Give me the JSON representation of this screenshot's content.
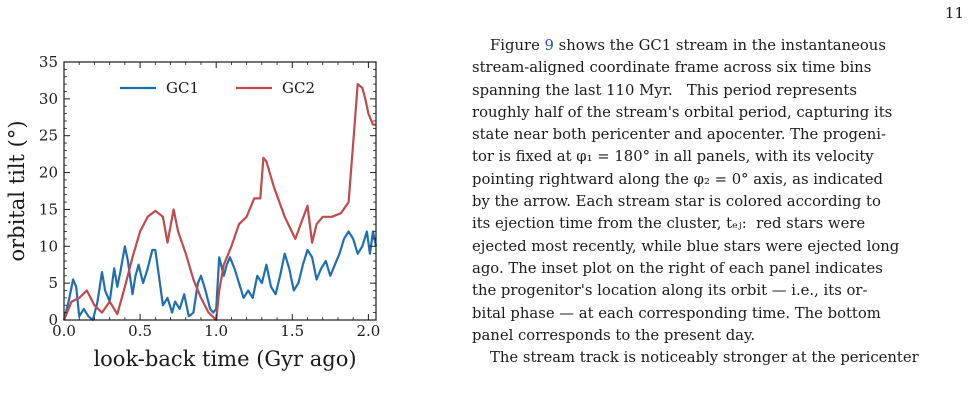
{
  "page_number": "11",
  "figure": {
    "colors": {
      "gc1": "#1f6fb0",
      "gc2": "#c04a4c"
    },
    "chart_data": {
      "type": "line",
      "xlabel": "look-back time (Gyr ago)",
      "ylabel": "orbital tilt (°)",
      "xlim": [
        0.0,
        2.05
      ],
      "ylim": [
        0,
        35
      ],
      "xticks": [
        "0.0",
        "0.5",
        "1.0",
        "1.5",
        "2.0"
      ],
      "yticks": [
        "0",
        "5",
        "10",
        "15",
        "20",
        "25",
        "30",
        "35"
      ],
      "legend_placement": "top",
      "series": [
        {
          "name": "GC1",
          "x": [
            0.0,
            0.03,
            0.06,
            0.08,
            0.1,
            0.13,
            0.16,
            0.19,
            0.22,
            0.25,
            0.27,
            0.3,
            0.33,
            0.35,
            0.37,
            0.4,
            0.42,
            0.45,
            0.47,
            0.49,
            0.52,
            0.55,
            0.58,
            0.6,
            0.62,
            0.65,
            0.68,
            0.71,
            0.73,
            0.76,
            0.79,
            0.82,
            0.85,
            0.88,
            0.9,
            0.93,
            0.96,
            0.98,
            1.0,
            1.02,
            1.05,
            1.07,
            1.09,
            1.12,
            1.15,
            1.18,
            1.21,
            1.24,
            1.27,
            1.3,
            1.33,
            1.36,
            1.39,
            1.42,
            1.45,
            1.48,
            1.51,
            1.54,
            1.57,
            1.6,
            1.63,
            1.66,
            1.69,
            1.72,
            1.75,
            1.78,
            1.81,
            1.84,
            1.87,
            1.9,
            1.93,
            1.96,
            1.99,
            2.01,
            2.03,
            2.05
          ],
          "y": [
            0.0,
            2.5,
            5.5,
            4.5,
            0.5,
            1.5,
            0.5,
            0.0,
            2.5,
            6.5,
            4.0,
            2.5,
            7.0,
            4.5,
            6.5,
            10.0,
            8.0,
            3.5,
            6.0,
            7.5,
            5.0,
            7.0,
            9.5,
            9.5,
            6.5,
            2.0,
            3.0,
            1.0,
            2.5,
            1.5,
            3.5,
            0.5,
            1.0,
            5.0,
            6.0,
            4.0,
            1.5,
            1.0,
            1.5,
            8.5,
            6.0,
            7.5,
            8.5,
            7.0,
            5.0,
            3.0,
            4.0,
            3.0,
            6.0,
            5.0,
            7.5,
            4.5,
            3.5,
            6.0,
            9.0,
            7.0,
            4.0,
            5.0,
            7.5,
            9.5,
            8.5,
            5.5,
            7.0,
            8.0,
            6.0,
            7.5,
            9.0,
            11.0,
            12.0,
            11.0,
            9.0,
            10.0,
            12.0,
            9.0,
            12.0,
            10.0
          ]
        },
        {
          "name": "GC2",
          "x": [
            0.0,
            0.05,
            0.1,
            0.15,
            0.2,
            0.25,
            0.3,
            0.35,
            0.4,
            0.45,
            0.5,
            0.55,
            0.6,
            0.65,
            0.68,
            0.72,
            0.75,
            0.8,
            0.85,
            0.9,
            0.95,
            1.0,
            1.02,
            1.05,
            1.1,
            1.15,
            1.2,
            1.25,
            1.29,
            1.31,
            1.33,
            1.38,
            1.45,
            1.52,
            1.6,
            1.63,
            1.66,
            1.7,
            1.76,
            1.82,
            1.87,
            1.9,
            1.93,
            1.96,
            1.98,
            2.0,
            2.03,
            2.05
          ],
          "y": [
            0.0,
            2.5,
            3.0,
            4.0,
            2.0,
            1.0,
            2.5,
            0.8,
            4.5,
            8.5,
            12.0,
            14.0,
            14.8,
            14.0,
            10.5,
            15.0,
            12.0,
            9.0,
            5.5,
            3.0,
            1.0,
            0.0,
            4.0,
            7.5,
            10.0,
            13.0,
            14.0,
            16.5,
            16.5,
            22.0,
            21.5,
            18.0,
            14.0,
            11.0,
            15.5,
            10.5,
            13.0,
            14.0,
            14.0,
            14.5,
            16.0,
            24.0,
            32.0,
            31.5,
            30.0,
            28.0,
            26.5,
            26.5
          ]
        }
      ]
    }
  },
  "paragraphs": [
    {
      "lines": [
        "Figure [9] shows the GC1 stream in the instantaneous",
        "stream-aligned coordinate frame across six time bins",
        "spanning the last 110 Myr.   This period represents",
        "roughly half of the stream's orbital period, capturing its",
        "state near both pericenter and apocenter. The progeni-",
        "tor is fixed at φ₁ = 180° in all panels, with its velocity",
        "pointing rightward along the φ₂ = 0° axis, as indicated",
        "by the arrow. Each stream star is colored according to",
        "its ejection time from the cluster, tₑⱼ:  red stars were",
        "ejected most recently, while blue stars were ejected long",
        "ago. The inset plot on the right of each panel indicates",
        "the progenitor's location along its orbit — i.e., its or-",
        "bital phase — at each corresponding time. The bottom",
        "panel corresponds to the present day."
      ],
      "ref_text": "9"
    },
    {
      "lines": [
        "The stream track is noticeably stronger at the pericenter"
      ]
    }
  ]
}
